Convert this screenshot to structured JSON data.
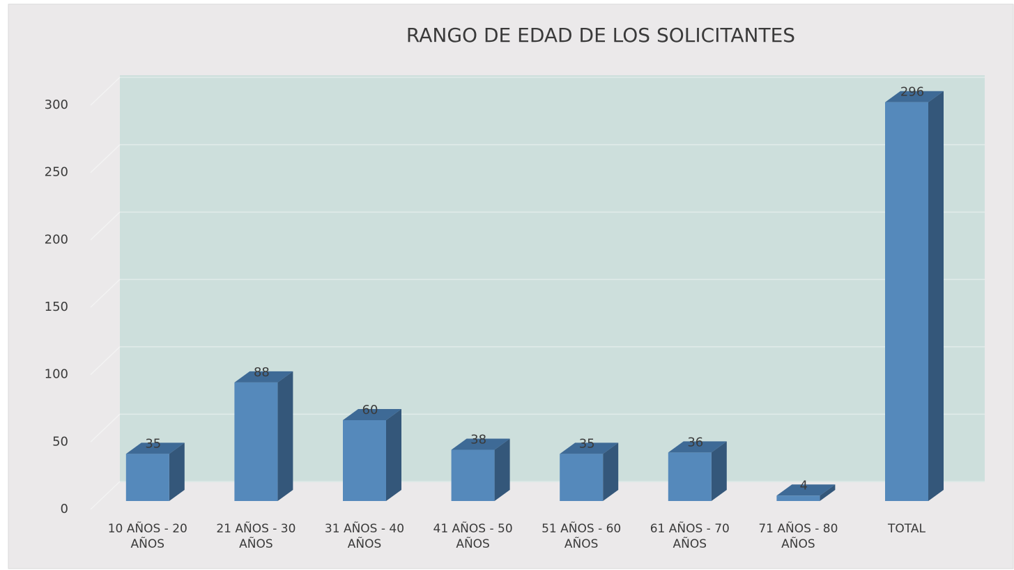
{
  "chart_data": {
    "type": "bar3d",
    "title": "RANGO DE EDAD DE LOS SOLICITANTES",
    "categories": [
      "10 AÑOS - 20 AÑOS",
      "21 AÑOS - 30 AÑOS",
      "31 AÑOS - 40 AÑOS",
      "41 AÑOS - 50 AÑOS",
      "51 AÑOS - 60 AÑOS",
      "61 AÑOS - 70 AÑOS",
      "71 AÑOS - 80 AÑOS",
      "TOTAL"
    ],
    "values": [
      35,
      88,
      60,
      38,
      35,
      36,
      4,
      296
    ],
    "color": "#5589bb",
    "ylim": [
      0,
      300
    ],
    "yticks": [
      0,
      50,
      100,
      150,
      200,
      250,
      300
    ],
    "grid": true
  }
}
